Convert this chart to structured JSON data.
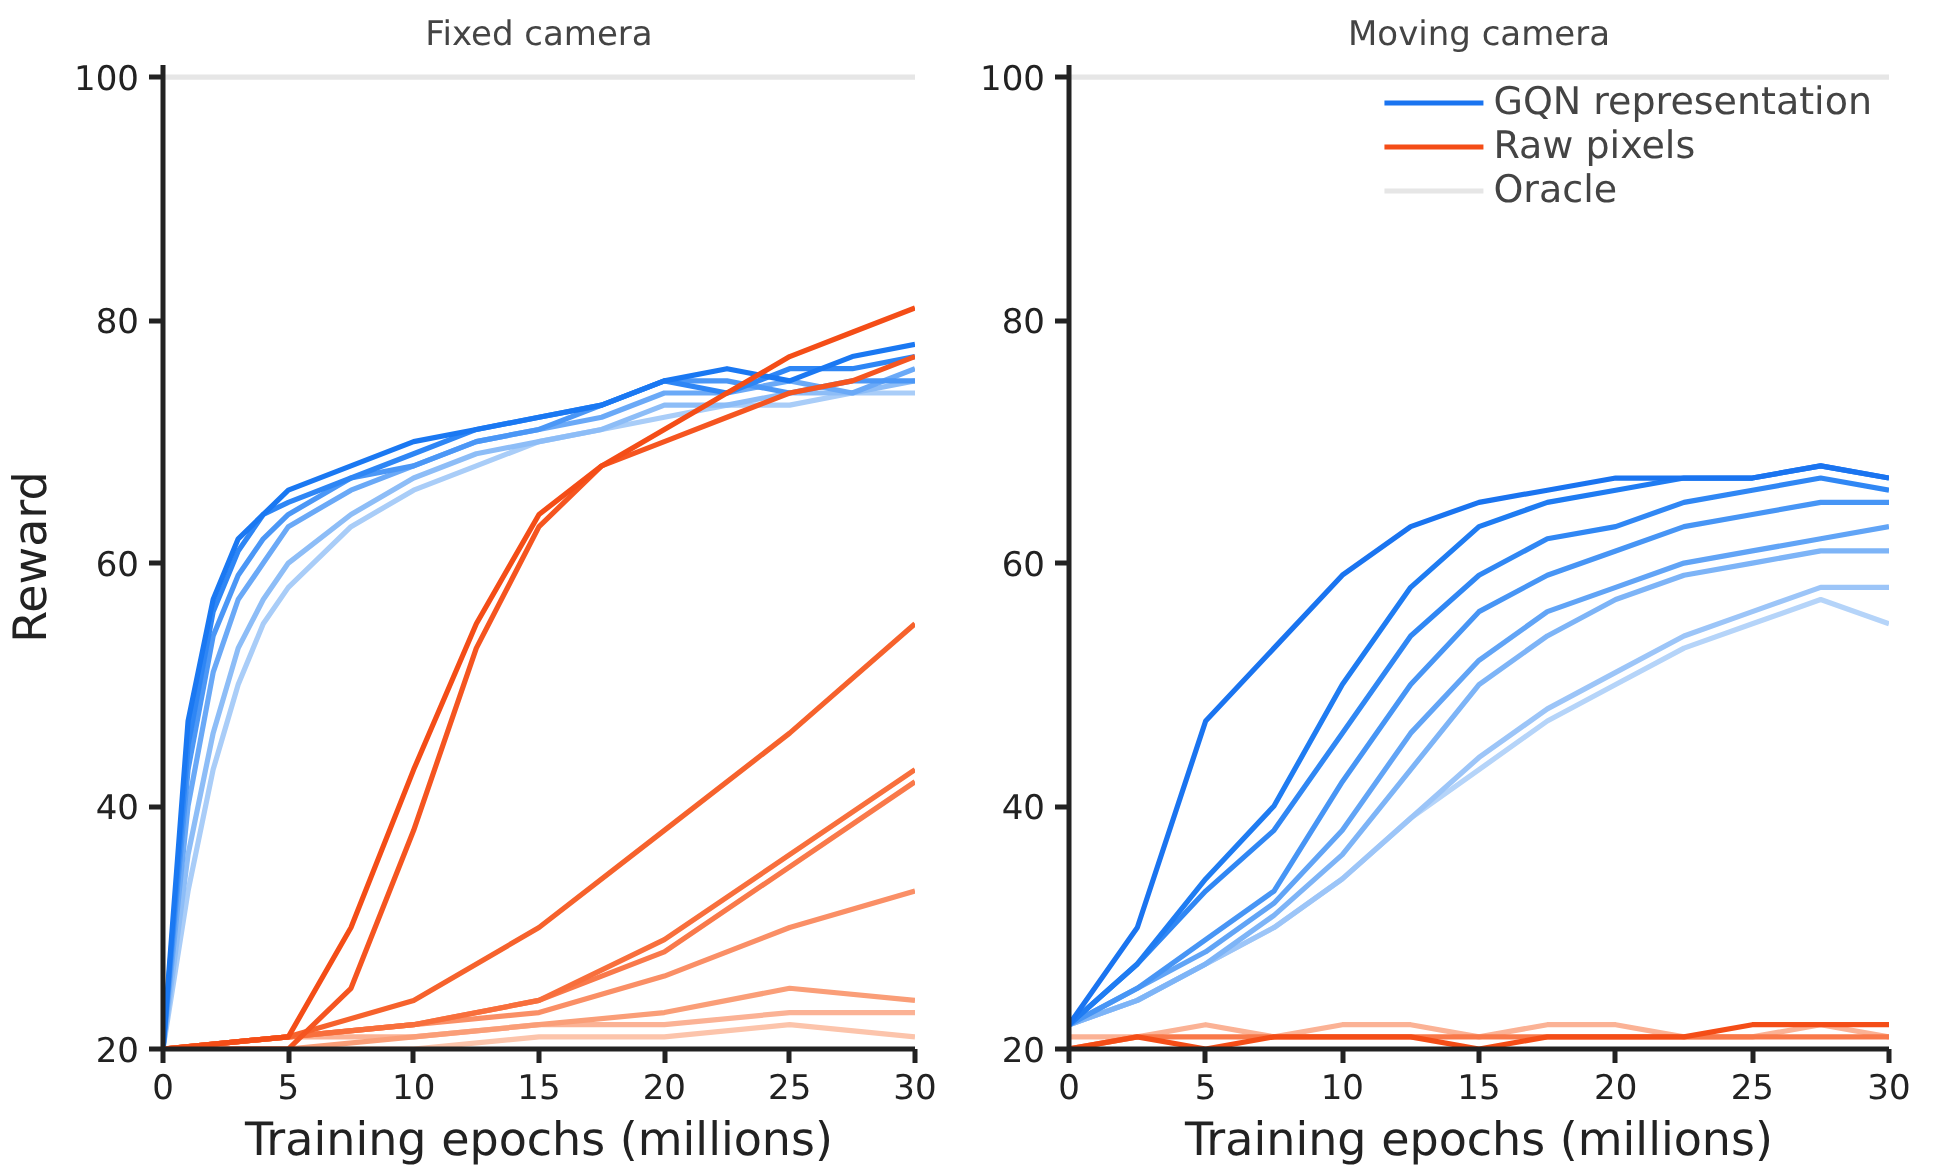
{
  "chart_data": [
    {
      "type": "line",
      "title": "Fixed camera",
      "xlabel": "Training epochs (millions)",
      "ylabel": "Reward",
      "x": [
        0,
        1,
        2,
        3,
        4,
        5,
        7.5,
        10,
        12.5,
        15,
        17.5,
        20,
        22.5,
        25,
        27.5,
        30
      ],
      "xlim": [
        0,
        30
      ],
      "ylim": [
        20,
        101
      ],
      "xticks": [
        0,
        5,
        10,
        15,
        20,
        25,
        30
      ],
      "yticks": [
        20,
        40,
        60,
        80,
        100
      ],
      "grid": false,
      "legend": false,
      "line_style": "solid",
      "marker": "none",
      "series": [
        {
          "color": "#e6e6e6",
          "x": [
            0,
            30
          ],
          "values": [
            100,
            100
          ]
        },
        {
          "color": "#a9cdf8",
          "values": [
            20,
            33,
            43,
            50,
            55,
            58,
            63,
            66,
            68,
            70,
            71,
            72,
            73,
            73,
            74,
            74
          ]
        },
        {
          "color": "#8dbdf7",
          "values": [
            20,
            36,
            46,
            53,
            57,
            60,
            64,
            67,
            69,
            70,
            71,
            73,
            73,
            74,
            74,
            75
          ]
        },
        {
          "color": "#6aa9f7",
          "values": [
            20,
            40,
            51,
            57,
            60,
            63,
            66,
            68,
            70,
            71,
            72,
            74,
            74,
            75,
            74,
            76
          ]
        },
        {
          "color": "#4b97f6",
          "values": [
            20,
            43,
            54,
            59,
            62,
            64,
            67,
            68,
            70,
            71,
            73,
            75,
            75,
            74,
            75,
            75
          ]
        },
        {
          "color": "#2e86f5",
          "values": [
            20,
            45,
            56,
            61,
            64,
            65,
            67,
            69,
            71,
            72,
            73,
            75,
            74,
            76,
            76,
            77
          ]
        },
        {
          "color": "#1a78f2",
          "values": [
            20,
            47,
            57,
            62,
            64,
            66,
            68,
            70,
            71,
            72,
            73,
            75,
            76,
            75,
            77,
            78
          ]
        },
        {
          "color": "#fcc4ab",
          "x": [
            0,
            5,
            10,
            15,
            20,
            25,
            30
          ],
          "values": [
            20,
            20,
            20,
            21,
            21,
            22,
            21
          ]
        },
        {
          "color": "#fbb295",
          "x": [
            0,
            5,
            10,
            15,
            20,
            25,
            30
          ],
          "values": [
            20,
            21,
            21,
            22,
            22,
            23,
            23
          ]
        },
        {
          "color": "#fa9e78",
          "x": [
            0,
            5,
            10,
            15,
            20,
            25,
            30
          ],
          "values": [
            20,
            20,
            21,
            22,
            23,
            25,
            24
          ]
        },
        {
          "color": "#fa8f66",
          "x": [
            0,
            5,
            10,
            15,
            20,
            25,
            30
          ],
          "values": [
            20,
            21,
            22,
            23,
            26,
            30,
            33
          ]
        },
        {
          "color": "#f9794a",
          "x": [
            0,
            5,
            10,
            15,
            20,
            25,
            30
          ],
          "values": [
            20,
            21,
            22,
            24,
            28,
            35,
            42
          ]
        },
        {
          "color": "#f86f3c",
          "x": [
            0,
            5,
            10,
            15,
            20,
            25,
            30
          ],
          "values": [
            20,
            21,
            22,
            24,
            29,
            36,
            43
          ]
        },
        {
          "color": "#f6622c",
          "x": [
            0,
            5,
            10,
            15,
            20,
            25,
            30
          ],
          "values": [
            20,
            21,
            24,
            30,
            38,
            46,
            55
          ]
        },
        {
          "color": "#f55520",
          "x": [
            0,
            5,
            7.5,
            10,
            12.5,
            15,
            17.5,
            20,
            22.5,
            25,
            27.5,
            30
          ],
          "values": [
            20,
            20,
            25,
            38,
            53,
            63,
            68,
            70,
            72,
            74,
            75,
            77
          ]
        },
        {
          "color": "#f44d17",
          "x": [
            0,
            5,
            7.5,
            10,
            12.5,
            15,
            17.5,
            20,
            22.5,
            25,
            27.5,
            30
          ],
          "values": [
            20,
            21,
            30,
            43,
            55,
            64,
            68,
            71,
            74,
            77,
            79,
            81
          ]
        }
      ]
    },
    {
      "type": "line",
      "title": "Moving camera",
      "xlabel": "Training epochs (millions)",
      "x": [
        0,
        2.5,
        5,
        7.5,
        10,
        12.5,
        15,
        17.5,
        20,
        22.5,
        25,
        27.5,
        30
      ],
      "xlim": [
        0,
        30
      ],
      "ylim": [
        20,
        101
      ],
      "xticks": [
        0,
        5,
        10,
        15,
        20,
        25,
        30
      ],
      "yticks": [
        20,
        40,
        60,
        80,
        100
      ],
      "grid": false,
      "legend": "top right",
      "line_style": "solid",
      "marker": "none",
      "series": [
        {
          "name": "Oracle",
          "color": "#e6e6e6",
          "x": [
            0,
            30
          ],
          "values": [
            100,
            100
          ]
        },
        {
          "color": "#fbb295",
          "values": [
            21,
            21,
            22,
            21,
            22,
            22,
            21,
            22,
            22,
            21,
            21,
            22,
            21
          ]
        },
        {
          "color": "#f9794a",
          "values": [
            20,
            21,
            21,
            21,
            21,
            21,
            21,
            21,
            21,
            21,
            21,
            21,
            21
          ]
        },
        {
          "name": "Raw pixels",
          "color": "#f44d17",
          "values": [
            20,
            21,
            20,
            21,
            21,
            21,
            20,
            21,
            21,
            21,
            22,
            22,
            22
          ]
        },
        {
          "color": "#b5d4f9",
          "values": [
            22,
            24,
            27,
            30,
            34,
            39,
            43,
            47,
            50,
            53,
            55,
            57,
            55
          ]
        },
        {
          "color": "#9cc5f8",
          "values": [
            22,
            24,
            27,
            30,
            34,
            39,
            44,
            48,
            51,
            54,
            56,
            58,
            58
          ]
        },
        {
          "color": "#7db4f7",
          "values": [
            22,
            24,
            27,
            31,
            36,
            43,
            50,
            54,
            57,
            59,
            60,
            61,
            61
          ]
        },
        {
          "color": "#61a4f6",
          "values": [
            22,
            25,
            28,
            32,
            38,
            46,
            52,
            56,
            58,
            60,
            61,
            62,
            63
          ]
        },
        {
          "color": "#4795f5",
          "values": [
            22,
            25,
            29,
            33,
            42,
            50,
            56,
            59,
            61,
            63,
            64,
            65,
            65
          ]
        },
        {
          "color": "#3087f4",
          "values": [
            22,
            27,
            33,
            38,
            46,
            54,
            59,
            62,
            63,
            65,
            66,
            67,
            66
          ]
        },
        {
          "color": "#1f7cf2",
          "values": [
            22,
            27,
            34,
            40,
            50,
            58,
            63,
            65,
            66,
            67,
            67,
            68,
            67
          ]
        },
        {
          "name": "GQN representation",
          "color": "#1a74f0",
          "values": [
            22,
            30,
            47,
            53,
            59,
            63,
            65,
            66,
            67,
            67,
            67,
            68,
            67
          ]
        }
      ]
    }
  ]
}
